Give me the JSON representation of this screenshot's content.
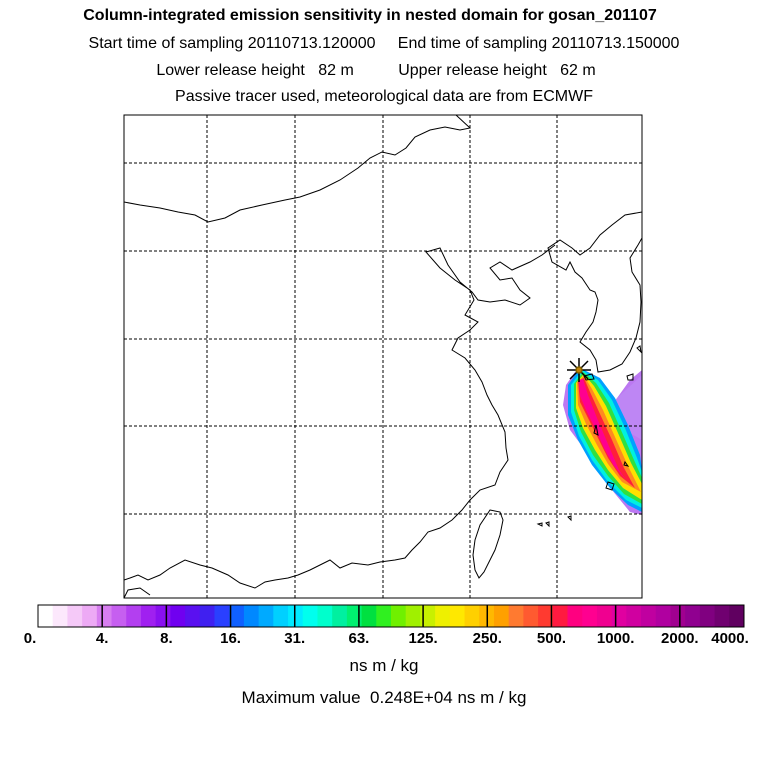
{
  "header": {
    "title": "Column-integrated emission sensitivity in nested domain for gosan_201107",
    "line2": "Start time of sampling 20110713.120000     End time of sampling 20110713.150000",
    "line3": "Lower release height   82 m          Upper release height   62 m",
    "line4": "Passive tracer used, meteorological data are from ECMWF"
  },
  "map": {
    "release_site": "gosan",
    "release_marker": "star-marker",
    "coastline_color": "#000000",
    "grid_color": "#000000"
  },
  "colorbar": {
    "units": "ns m / kg",
    "ticks": [
      "0.",
      "4.",
      "8.",
      "16.",
      "31.",
      "63.",
      "125.",
      "250.",
      "500.",
      "1000.",
      "2000.",
      "4000."
    ],
    "colors": [
      "#ffffff",
      "#fce8fc",
      "#f5c9f8",
      "#edaaf5",
      "#d77ef0",
      "#c65ff0",
      "#b33ff0",
      "#a020f0",
      "#8a10f0",
      "#7000f0",
      "#5a10f0",
      "#4020f0",
      "#2a40ff",
      "#1060ff",
      "#0088ff",
      "#00aaff",
      "#00d0ff",
      "#00eaff",
      "#00ffee",
      "#00ffcc",
      "#00f0a0",
      "#00f070",
      "#00e040",
      "#30f020",
      "#70f000",
      "#a0f000",
      "#c8f000",
      "#eef000",
      "#ffe800",
      "#ffd000",
      "#ffb800",
      "#ffa000",
      "#ff7a30",
      "#ff5a30",
      "#ff3a30",
      "#ff1a40",
      "#ff0080",
      "#ff0090",
      "#f00090",
      "#e000a0",
      "#d000a0",
      "#c000a0",
      "#b000a0",
      "#a00090",
      "#900090",
      "#800080",
      "#700070",
      "#600060"
    ]
  },
  "footer": {
    "max_value": "Maximum value  0.248E+04 ns m / kg"
  }
}
